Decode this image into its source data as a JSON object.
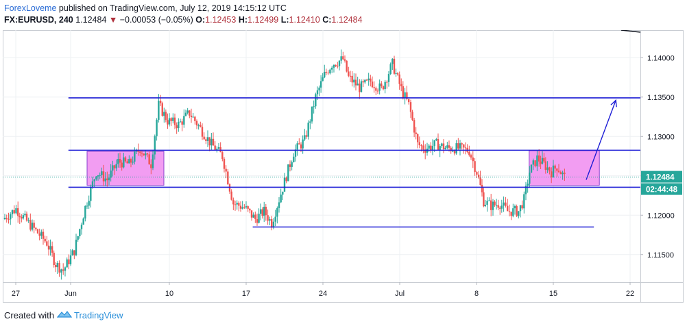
{
  "header": {
    "author": "ForexLoveme",
    "published_text": "published on TradingView.com, July 12, 2019 14:15:12 UTC",
    "symbol": "FX:EURUSD, 240",
    "last": "1.12484",
    "change_arrow": "▼",
    "change": "−0.00053 (−0.05%)",
    "o_label": "O:",
    "o_value": "1.12453",
    "h_label": "H:",
    "h_value": "1.12499",
    "l_label": "L:",
    "l_value": "1.12410",
    "c_label": "C:",
    "c_value": "1.12484"
  },
  "footer": {
    "created_with": "Created with",
    "brand": "TradingView"
  },
  "colors": {
    "up": "#26a69a",
    "down": "#ef5350",
    "level_line": "#1d1dd6",
    "zone_fill": "#f08cf0",
    "price_label_bg": "#26a69a",
    "countdown_bg": "#26a69a",
    "grid": "#eef0f3"
  },
  "chart_data": {
    "type": "candlestick",
    "symbol": "FX:EURUSD",
    "interval": "240",
    "ylim": [
      1.1115,
      1.1435
    ],
    "y_ticks": [
      "1.11500",
      "1.12000",
      "1.12500",
      "1.13000",
      "1.13500",
      "1.14000"
    ],
    "y_tick_values": [
      1.115,
      1.12,
      1.125,
      1.13,
      1.135,
      1.14
    ],
    "x_range_days": [
      0,
      96
    ],
    "x_ticks": [
      {
        "day": 0,
        "label": "27"
      },
      {
        "day": 5,
        "label": "Jun"
      },
      {
        "day": 14,
        "label": "10"
      },
      {
        "day": 21,
        "label": "17"
      },
      {
        "day": 28,
        "label": "24"
      },
      {
        "day": 35,
        "label": "Jul"
      },
      {
        "day": 42,
        "label": "8"
      },
      {
        "day": 49,
        "label": "15"
      },
      {
        "day": 56,
        "label": "22"
      }
    ],
    "candles_anchor_close": [
      [
        -1.0,
        1.1195
      ],
      [
        0.2,
        1.1208
      ],
      [
        1.0,
        1.1195
      ],
      [
        2.0,
        1.118
      ],
      [
        3.0,
        1.1165
      ],
      [
        3.8,
        1.1138
      ],
      [
        4.5,
        1.113
      ],
      [
        5.5,
        1.1155
      ],
      [
        6.5,
        1.121
      ],
      [
        7.5,
        1.1255
      ],
      [
        8.5,
        1.1245
      ],
      [
        9.5,
        1.1268
      ],
      [
        10.5,
        1.1265
      ],
      [
        11.5,
        1.1285
      ],
      [
        12.5,
        1.1265
      ],
      [
        13.2,
        1.134
      ],
      [
        14.0,
        1.132
      ],
      [
        15.0,
        1.1315
      ],
      [
        16.0,
        1.133
      ],
      [
        17.0,
        1.131
      ],
      [
        18.0,
        1.129
      ],
      [
        19.0,
        1.1275
      ],
      [
        20.0,
        1.1215
      ],
      [
        21.0,
        1.121
      ],
      [
        22.0,
        1.1195
      ],
      [
        22.8,
        1.1205
      ],
      [
        23.5,
        1.119
      ],
      [
        24.5,
        1.1235
      ],
      [
        25.5,
        1.128
      ],
      [
        26.5,
        1.1295
      ],
      [
        27.5,
        1.135
      ],
      [
        28.3,
        1.1378
      ],
      [
        29.0,
        1.1392
      ],
      [
        30.0,
        1.1398
      ],
      [
        30.5,
        1.1375
      ],
      [
        31.5,
        1.1362
      ],
      [
        32.5,
        1.137
      ],
      [
        33.5,
        1.136
      ],
      [
        34.5,
        1.1392
      ],
      [
        35.3,
        1.136
      ],
      [
        36.0,
        1.134
      ],
      [
        36.8,
        1.129
      ],
      [
        37.5,
        1.1285
      ],
      [
        38.5,
        1.129
      ],
      [
        39.5,
        1.1285
      ],
      [
        40.5,
        1.1285
      ],
      [
        41.5,
        1.1282
      ],
      [
        42.2,
        1.1255
      ],
      [
        42.8,
        1.1218
      ],
      [
        43.5,
        1.1212
      ],
      [
        44.3,
        1.1215
      ],
      [
        45.0,
        1.1205
      ],
      [
        46.0,
        1.1205
      ],
      [
        46.5,
        1.122
      ],
      [
        47.0,
        1.1255
      ],
      [
        47.7,
        1.1272
      ],
      [
        48.3,
        1.1265
      ],
      [
        49.0,
        1.1255
      ],
      [
        49.5,
        1.1262
      ],
      [
        50.2,
        1.1248
      ]
    ],
    "horizontal_levels": [
      {
        "price": 1.1349,
        "from_day": 4.8,
        "to_day": 58.9
      },
      {
        "price": 1.12825,
        "from_day": 4.8,
        "to_day": 58.9
      },
      {
        "price": 1.12355,
        "from_day": 4.8,
        "to_day": 58.9
      },
      {
        "price": 1.1185,
        "from_day": 21.6,
        "to_day": 52.7
      }
    ],
    "zones": [
      {
        "from_day": 6.5,
        "to_day": 13.5,
        "price_top": 1.1281,
        "price_bottom": 1.1238
      },
      {
        "from_day": 46.8,
        "to_day": 53.2,
        "price_top": 1.1282,
        "price_bottom": 1.1238
      }
    ],
    "arrow": {
      "from_day": 52.0,
      "from_price": 1.1245,
      "to_day": 54.7,
      "to_price": 1.1346
    },
    "current_price": 1.12484,
    "current_price_label": "1.12484",
    "countdown_label": "02:44:48"
  }
}
